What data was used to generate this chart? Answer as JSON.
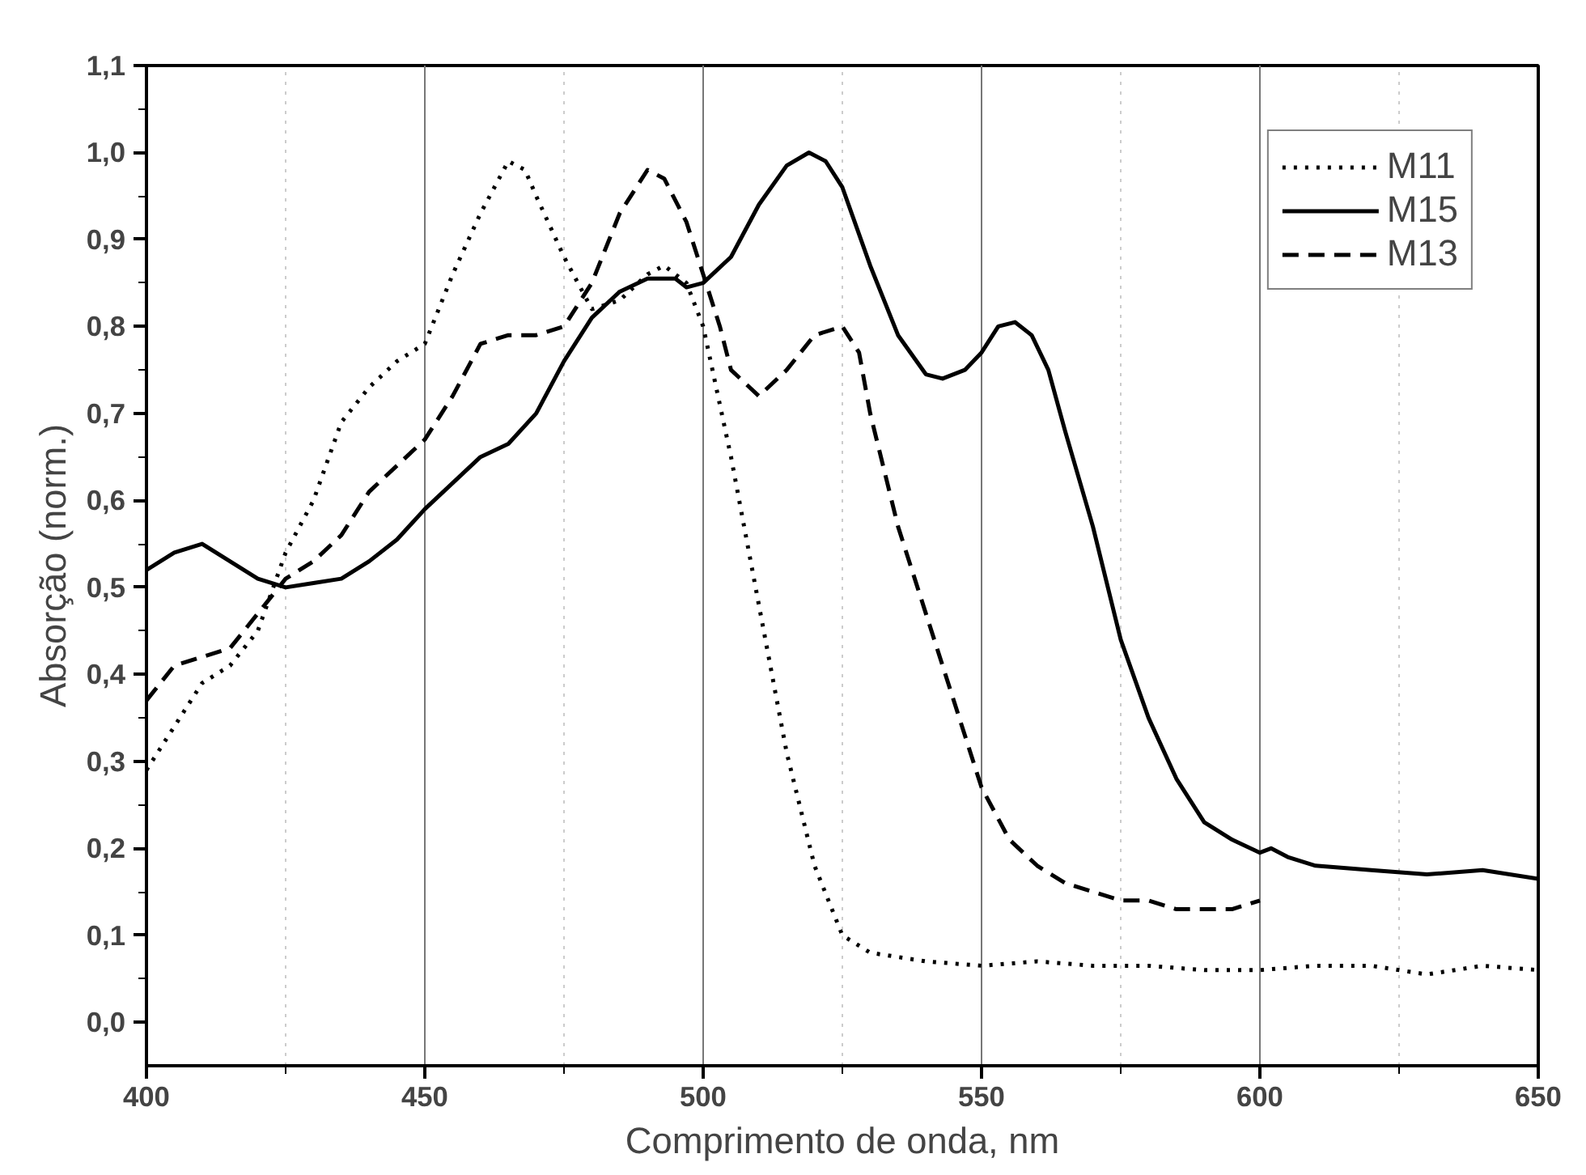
{
  "chart_data": {
    "type": "line",
    "xlabel": "Comprimento de onda, nm",
    "ylabel": "Absorção (norm.)",
    "xlim": [
      400,
      650
    ],
    "ylim": [
      -0.05,
      1.1
    ],
    "xticks": [
      400,
      450,
      500,
      550,
      600,
      650
    ],
    "yticks": [
      {
        "value": 0,
        "label": "0,0"
      },
      {
        "value": 0.1,
        "label": "0,1"
      },
      {
        "value": 0.2,
        "label": "0,2"
      },
      {
        "value": 0.3,
        "label": "0,3"
      },
      {
        "value": 0.4,
        "label": "0,4"
      },
      {
        "value": 0.5,
        "label": "0,5"
      },
      {
        "value": 0.6,
        "label": "0,6"
      },
      {
        "value": 0.7,
        "label": "0,7"
      },
      {
        "value": 0.8,
        "label": "0,8"
      },
      {
        "value": 0.9,
        "label": "0,9"
      },
      {
        "value": 1.0,
        "label": "1,0"
      },
      {
        "value": 1.1,
        "label": "1,1"
      }
    ],
    "grid": "x",
    "legend": "top right",
    "series": [
      {
        "name": "M11",
        "color": "#000000",
        "line_style": "dotted",
        "x": [
          400,
          405,
          410,
          415,
          420,
          425,
          430,
          435,
          440,
          445,
          450,
          455,
          460,
          465,
          468,
          470,
          475,
          480,
          485,
          490,
          493,
          497,
          500,
          505,
          510,
          515,
          520,
          525,
          530,
          535,
          540,
          550,
          560,
          570,
          580,
          590,
          600,
          610,
          620,
          630,
          640,
          650
        ],
        "values": [
          0.29,
          0.34,
          0.39,
          0.41,
          0.45,
          0.54,
          0.6,
          0.69,
          0.73,
          0.76,
          0.78,
          0.86,
          0.93,
          0.99,
          0.98,
          0.95,
          0.88,
          0.82,
          0.83,
          0.86,
          0.87,
          0.85,
          0.8,
          0.65,
          0.48,
          0.31,
          0.18,
          0.1,
          0.08,
          0.075,
          0.07,
          0.065,
          0.07,
          0.065,
          0.065,
          0.06,
          0.06,
          0.065,
          0.065,
          0.055,
          0.065,
          0.06
        ]
      },
      {
        "name": "M15",
        "color": "#000000",
        "line_style": "solid",
        "x": [
          400,
          405,
          410,
          415,
          420,
          425,
          430,
          435,
          440,
          445,
          450,
          455,
          460,
          465,
          470,
          475,
          480,
          485,
          490,
          495,
          497,
          500,
          505,
          510,
          515,
          519,
          522,
          525,
          530,
          535,
          540,
          543,
          547,
          550,
          553,
          556,
          559,
          562,
          565,
          570,
          575,
          580,
          585,
          590,
          595,
          600,
          602,
          605,
          610,
          620,
          630,
          640,
          650
        ],
        "values": [
          0.52,
          0.54,
          0.55,
          0.53,
          0.51,
          0.5,
          0.505,
          0.51,
          0.53,
          0.555,
          0.59,
          0.62,
          0.65,
          0.665,
          0.7,
          0.76,
          0.81,
          0.84,
          0.855,
          0.855,
          0.845,
          0.85,
          0.88,
          0.94,
          0.985,
          1.0,
          0.99,
          0.96,
          0.87,
          0.79,
          0.745,
          0.74,
          0.75,
          0.77,
          0.8,
          0.805,
          0.79,
          0.75,
          0.68,
          0.57,
          0.44,
          0.35,
          0.28,
          0.23,
          0.21,
          0.195,
          0.2,
          0.19,
          0.18,
          0.175,
          0.17,
          0.175,
          0.165
        ]
      },
      {
        "name": "M13",
        "color": "#000000",
        "line_style": "dashed",
        "x": [
          400,
          405,
          410,
          415,
          420,
          425,
          430,
          435,
          440,
          445,
          450,
          455,
          460,
          465,
          470,
          475,
          480,
          485,
          490,
          493,
          497,
          500,
          503,
          505,
          510,
          515,
          520,
          525,
          528,
          530,
          535,
          540,
          545,
          550,
          555,
          560,
          565,
          570,
          575,
          580,
          585,
          590,
          595,
          600
        ],
        "values": [
          0.37,
          0.41,
          0.42,
          0.43,
          0.47,
          0.51,
          0.53,
          0.56,
          0.61,
          0.64,
          0.67,
          0.72,
          0.78,
          0.79,
          0.79,
          0.8,
          0.85,
          0.93,
          0.98,
          0.97,
          0.92,
          0.86,
          0.8,
          0.75,
          0.72,
          0.75,
          0.79,
          0.8,
          0.77,
          0.7,
          0.57,
          0.47,
          0.37,
          0.27,
          0.21,
          0.18,
          0.16,
          0.15,
          0.14,
          0.14,
          0.13,
          0.13,
          0.13,
          0.14
        ]
      }
    ]
  }
}
